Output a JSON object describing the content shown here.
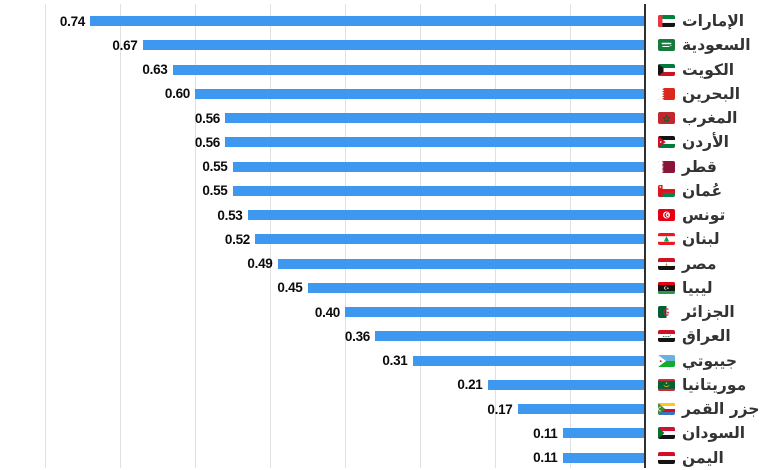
{
  "chart_data": {
    "type": "bar",
    "orientation": "horizontal-rtl",
    "title": "",
    "xlabel": "",
    "ylabel": "",
    "xlim": [
      0,
      0.8
    ],
    "grid": true,
    "gridline_values": [
      0.1,
      0.2,
      0.3,
      0.4,
      0.5,
      0.6,
      0.7,
      0.8
    ],
    "legend_position": "none",
    "categories": [
      "الإمارات",
      "السعودية",
      "الكويت",
      "البحرين",
      "المغرب",
      "الأردن",
      "قطر",
      "عُمان",
      "تونس",
      "لبنان",
      "مصر",
      "ليبيا",
      "الجزائر",
      "العراق",
      "جيبوتي",
      "موريتانيا",
      "جزر القمر",
      "السودان",
      "اليمن"
    ],
    "values": [
      0.74,
      0.67,
      0.63,
      0.6,
      0.56,
      0.56,
      0.55,
      0.55,
      0.53,
      0.52,
      0.49,
      0.45,
      0.4,
      0.36,
      0.31,
      0.21,
      0.17,
      0.11,
      0.11
    ],
    "value_labels": [
      "0.74",
      "0.67",
      "0.63",
      "0.60",
      "0.56",
      "0.56",
      "0.55",
      "0.55",
      "0.53",
      "0.52",
      "0.49",
      "0.45",
      "0.40",
      "0.36",
      "0.31",
      "0.21",
      "0.17",
      "0.11",
      "0.11"
    ],
    "flags": [
      "uae",
      "saudi-arabia",
      "kuwait",
      "bahrain",
      "morocco",
      "jordan",
      "qatar",
      "oman",
      "tunisia",
      "lebanon",
      "egypt",
      "libya",
      "algeria",
      "iraq",
      "djibouti",
      "mauritania",
      "comoros",
      "sudan",
      "yemen"
    ],
    "colors": {
      "bar": "#3F98F0",
      "axis": "#303030",
      "gridline": "#e0e0e0",
      "value_text": "#0b0b0b",
      "category_text": "#333333",
      "background": "#ffffff"
    }
  }
}
